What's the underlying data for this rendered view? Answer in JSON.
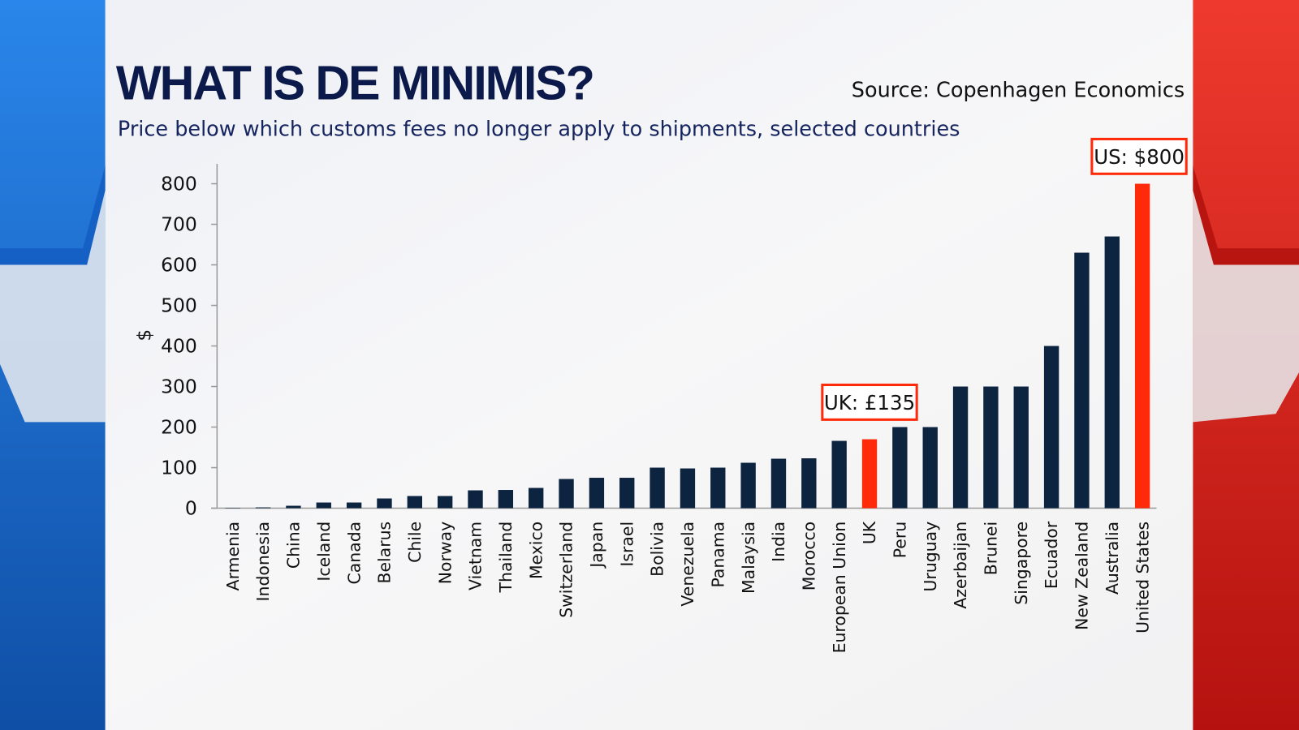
{
  "chart_data": {
    "type": "bar",
    "title": "WHAT IS DE MINIMIS?",
    "subtitle": "Price below which customs fees no longer apply to shipments, selected countries",
    "source": "Source: Copenhagen Economics",
    "ylabel": "$",
    "xlabel": "",
    "ylim": [
      0,
      800
    ],
    "yticks": [
      0,
      100,
      200,
      300,
      400,
      500,
      600,
      700,
      800
    ],
    "grid": false,
    "categories": [
      "Armenia",
      "Indonesia",
      "China",
      "Iceland",
      "Canada",
      "Belarus",
      "Chile",
      "Norway",
      "Vietnam",
      "Thailand",
      "Mexico",
      "Switzerland",
      "Japan",
      "Israel",
      "Bolivia",
      "Venezuela",
      "Panama",
      "Malaysia",
      "India",
      "Morocco",
      "European Union",
      "UK",
      "Peru",
      "Uruguay",
      "Azerbaijan",
      "Brunei",
      "Singapore",
      "Ecuador",
      "New Zealand",
      "Australia",
      "United States"
    ],
    "values": [
      1,
      2,
      6,
      14,
      14,
      24,
      30,
      30,
      44,
      45,
      50,
      72,
      75,
      75,
      100,
      98,
      100,
      112,
      122,
      123,
      166,
      170,
      200,
      200,
      300,
      300,
      300,
      400,
      630,
      670,
      800
    ],
    "highlight": [
      "UK",
      "United States"
    ],
    "annotations": [
      {
        "category": "UK",
        "text": "UK: £135"
      },
      {
        "category": "United States",
        "text": "US: $800"
      }
    ],
    "colors": {
      "bar": "#0d2440",
      "highlight": "#ff2a0a",
      "callout_border": "#ff2a0a",
      "left_panel": "#1a6fd6",
      "right_panel": "#d9201e"
    }
  }
}
